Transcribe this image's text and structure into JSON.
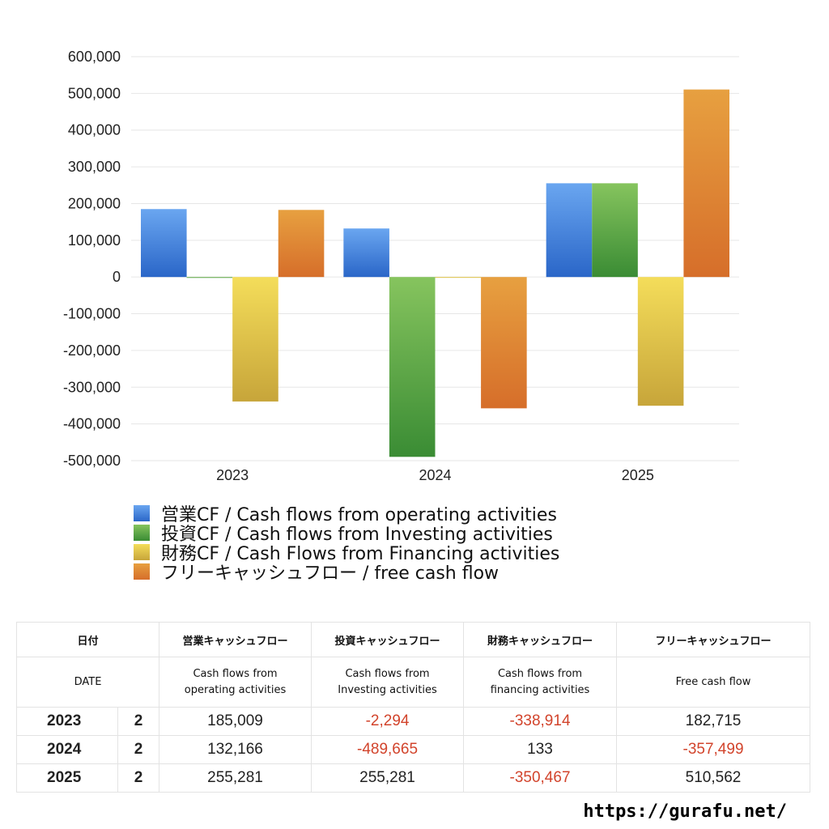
{
  "chart_data": {
    "type": "bar",
    "categories": [
      "2023",
      "2024",
      "2025"
    ],
    "series": [
      {
        "name": "営業CF / Cash flows from operating activities",
        "values": [
          185009,
          132166,
          255281
        ],
        "color_top": "#6aa6f0",
        "color_bottom": "#2a66c8"
      },
      {
        "name": "投資CF / Cash flows from Investing activities",
        "values": [
          -2294,
          -489665,
          255281
        ],
        "color_top": "#86c45e",
        "color_bottom": "#3a8c34"
      },
      {
        "name": "財務CF / Cash Flows from Financing activities",
        "values": [
          -338914,
          133,
          -350467
        ],
        "color_top": "#f4dd5a",
        "color_bottom": "#c7a53a"
      },
      {
        "name": "フリーキャッシュフロー / free cash flow",
        "values": [
          182715,
          -357499,
          510562
        ],
        "color_top": "#e7a040",
        "color_bottom": "#d66e2a"
      }
    ],
    "ylim": [
      -500000,
      600000
    ],
    "yticks": [
      "600,000",
      "500,000",
      "400,000",
      "300,000",
      "200,000",
      "100,000",
      "0",
      "-100,000",
      "-200,000",
      "-300,000",
      "-400,000",
      "-500,000"
    ],
    "grid": true,
    "legend_position": "bottom-left"
  },
  "table": {
    "header1": [
      "日付",
      "営業キャッシュフロー",
      "投資キャッシュフロー",
      "財務キャッシュフロー",
      "フリーキャッシュフロー"
    ],
    "header2_date": "DATE",
    "header2": [
      [
        "Cash flows from",
        "operating activities"
      ],
      [
        "Cash flows from",
        "Investing activities"
      ],
      [
        "Cash flows from",
        "financing activities"
      ],
      [
        "Free cash flow"
      ]
    ],
    "rows": [
      {
        "year": "2023",
        "num": "2",
        "values": [
          "185,009",
          "-2,294",
          "-338,914",
          "182,715"
        ]
      },
      {
        "year": "2024",
        "num": "2",
        "values": [
          "132,166",
          "-489,665",
          "133",
          "-357,499"
        ]
      },
      {
        "year": "2025",
        "num": "2",
        "values": [
          "255,281",
          "255,281",
          "-350,467",
          "510,562"
        ]
      }
    ],
    "negative_color": "#d2442c"
  },
  "footer": {
    "url": "https://gurafu.net/"
  }
}
